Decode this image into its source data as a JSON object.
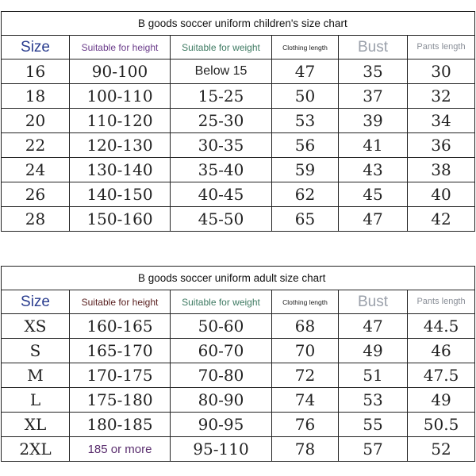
{
  "children_chart": {
    "title": "B goods soccer uniform children's size chart",
    "headers": {
      "size": "Size",
      "height": "Suitable for height",
      "weight": "Suitable for weight",
      "length": "Clothing length",
      "bust": "Bust",
      "pants": "Pants length"
    },
    "rows": [
      {
        "size": "16",
        "height": "90-100",
        "weight": "Below 15",
        "length": "47",
        "bust": "35",
        "pants": "30"
      },
      {
        "size": "18",
        "height": "100-110",
        "weight": "15-25",
        "length": "50",
        "bust": "37",
        "pants": "32"
      },
      {
        "size": "20",
        "height": "110-120",
        "weight": "25-30",
        "length": "53",
        "bust": "39",
        "pants": "34"
      },
      {
        "size": "22",
        "height": "120-130",
        "weight": "30-35",
        "length": "56",
        "bust": "41",
        "pants": "36"
      },
      {
        "size": "24",
        "height": "130-140",
        "weight": "35-40",
        "length": "59",
        "bust": "43",
        "pants": "38"
      },
      {
        "size": "26",
        "height": "140-150",
        "weight": "40-45",
        "length": "62",
        "bust": "45",
        "pants": "40"
      },
      {
        "size": "28",
        "height": "150-160",
        "weight": "45-50",
        "length": "65",
        "bust": "47",
        "pants": "42"
      }
    ]
  },
  "adult_chart": {
    "title": "B goods soccer uniform adult size chart",
    "headers": {
      "size": "Size",
      "height": "Suitable for height",
      "weight": "Suitable for weight",
      "length": "Clothing length",
      "bust": "Bust",
      "pants": "Pants length"
    },
    "rows": [
      {
        "size": "XS",
        "height": "160-165",
        "weight": "50-60",
        "length": "68",
        "bust": "47",
        "pants": "44.5"
      },
      {
        "size": "S",
        "height": "165-170",
        "weight": "60-70",
        "length": "70",
        "bust": "49",
        "pants": "46"
      },
      {
        "size": "M",
        "height": "170-175",
        "weight": "70-80",
        "length": "72",
        "bust": "51",
        "pants": "47.5"
      },
      {
        "size": "L",
        "height": "175-180",
        "weight": "80-90",
        "length": "74",
        "bust": "53",
        "pants": "49"
      },
      {
        "size": "XL",
        "height": "180-185",
        "weight": "90-95",
        "length": "76",
        "bust": "55",
        "pants": "50.5"
      },
      {
        "size": "2XL",
        "height": "185 or more",
        "weight": "95-110",
        "length": "78",
        "bust": "57",
        "pants": "52"
      }
    ]
  }
}
